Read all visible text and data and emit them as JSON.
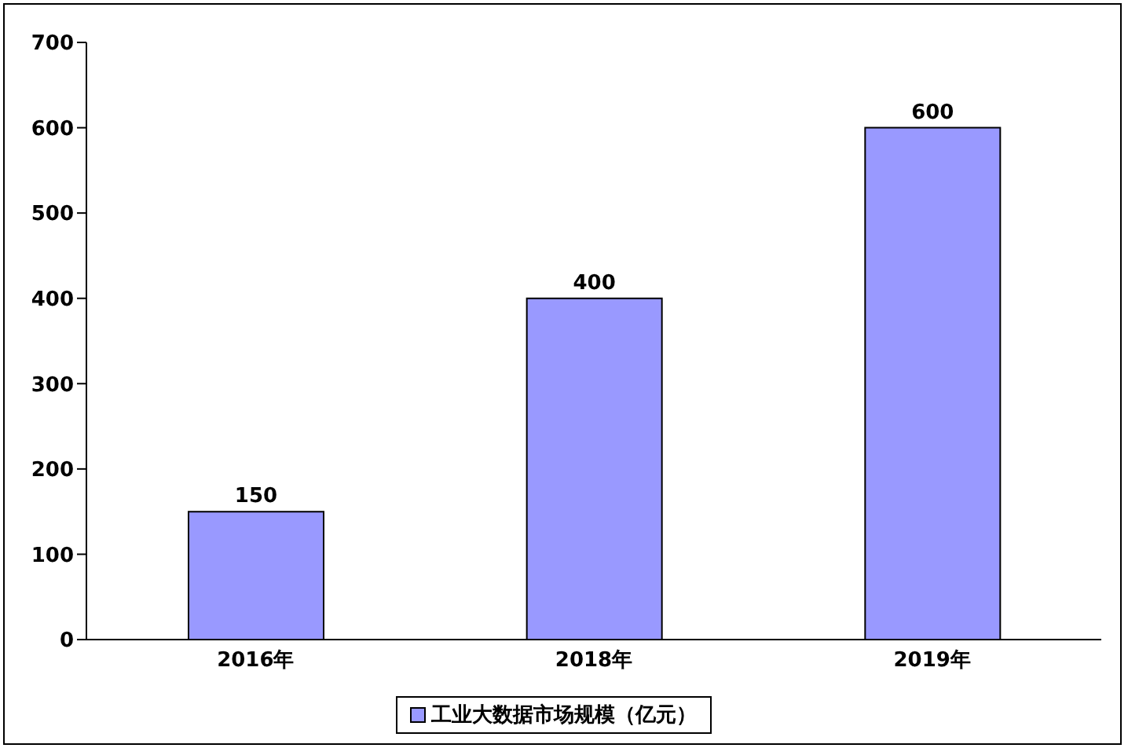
{
  "chart_data": {
    "type": "bar",
    "categories": [
      "2016年",
      "2018年",
      "2019年"
    ],
    "series": [
      {
        "name": "工业大数据市场规模（亿元）",
        "color": "#9999ff",
        "values": [
          150,
          400,
          600
        ]
      }
    ],
    "ylim": [
      0,
      700
    ],
    "yticks": [
      0,
      100,
      200,
      300,
      400,
      500,
      600,
      700
    ],
    "grid": false,
    "legend": "bottom",
    "data_labels": true
  }
}
